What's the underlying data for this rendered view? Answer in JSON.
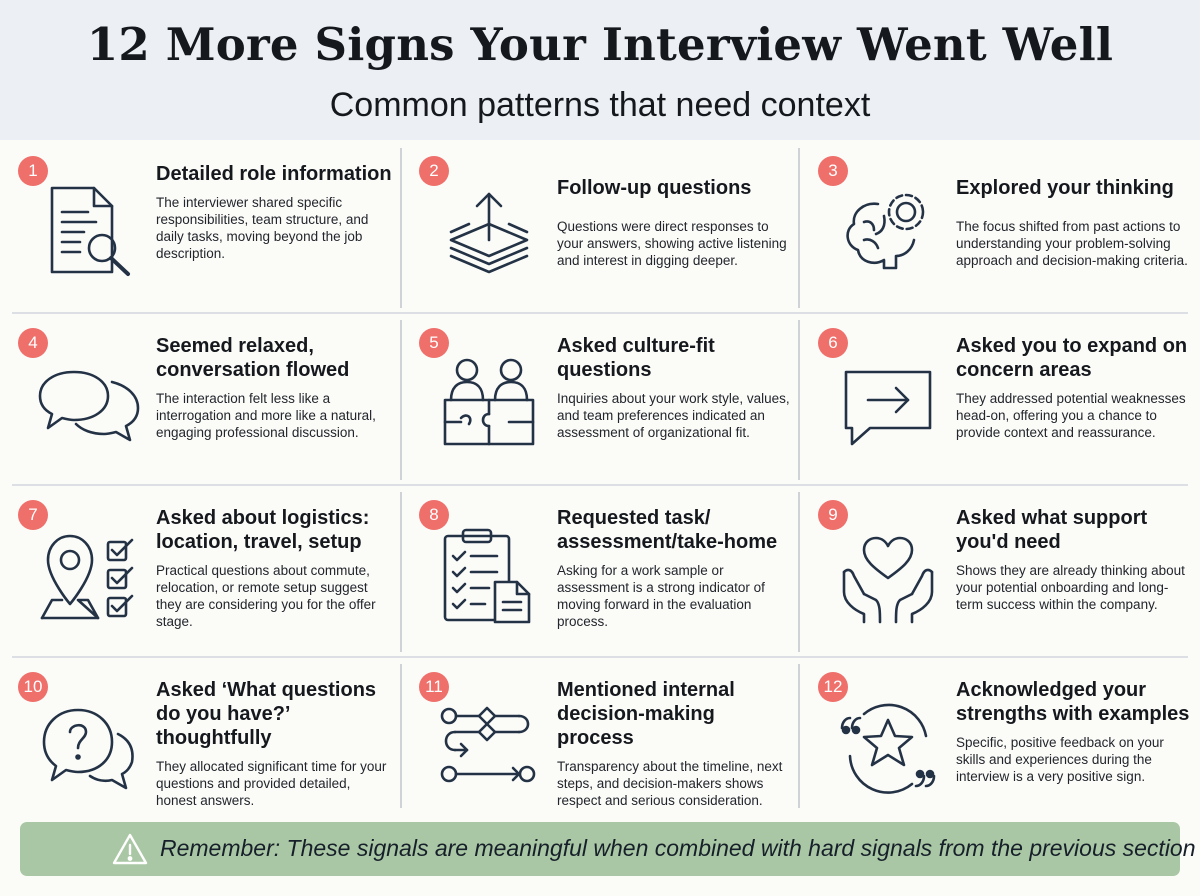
{
  "header": {
    "title": "12 More Signs Your Interview Went Well",
    "subtitle": "Common patterns that need context"
  },
  "cards": [
    {
      "number": "1",
      "icon": "document-search-icon",
      "title": "Detailed role information",
      "description": "The interviewer shared specific responsibilities, team structure, and daily tasks, moving beyond the job description."
    },
    {
      "number": "2",
      "icon": "layers-arrow-icon",
      "title": "Follow-up questions",
      "description": "Questions were direct responses to your answers, showing active listening and interest in digging deeper."
    },
    {
      "number": "3",
      "icon": "brain-gear-icon",
      "title": "Explored your thinking",
      "description": "The focus shifted from past actions to understanding your problem-solving approach and decision-making criteria."
    },
    {
      "number": "4",
      "icon": "chat-bubbles-icon",
      "title": "Seemed relaxed, conversation flowed",
      "description": "The interaction felt less like a interrogation and more like a natural, engaging professional discussion."
    },
    {
      "number": "5",
      "icon": "people-puzzle-icon",
      "title": "Asked culture-fit questions",
      "description": "Inquiries about your work style, values, and team preferences indicated an assessment of organizational fit."
    },
    {
      "number": "6",
      "icon": "speech-arrow-icon",
      "title": "Asked you to expand on concern areas",
      "description": "They addressed potential weaknesses head-on, offering you a chance to provide context and reassurance."
    },
    {
      "number": "7",
      "icon": "location-checklist-icon",
      "title": "Asked about logistics: location, travel, setup",
      "description": "Practical questions about commute, relocation, or remote setup suggest they are considering you for the offer stage."
    },
    {
      "number": "8",
      "icon": "clipboard-checklist-icon",
      "title": "Requested task/ assessment/take-home",
      "description": "Asking for a work sample or assessment is a strong indicator of moving forward in the evaluation process."
    },
    {
      "number": "9",
      "icon": "hands-heart-icon",
      "title": "Asked what support you'd need",
      "description": "Shows they are already thinking about your potential onboarding and long-term success within the company."
    },
    {
      "number": "10",
      "icon": "question-bubble-icon",
      "title": "Asked ‘What questions do you have?’ thoughtfully",
      "description": "They allocated significant time for your questions and provided detailed, honest answers."
    },
    {
      "number": "11",
      "icon": "process-flow-icon",
      "title": "Mentioned internal decision-making process",
      "description": "Transparency about the timeline, next steps, and decision-makers shows respect and serious consideration."
    },
    {
      "number": "12",
      "icon": "star-quote-icon",
      "title": "Acknowledged your strengths with examples",
      "description": "Specific, positive feedback on your skills and experiences during the interview is a very positive sign."
    }
  ],
  "banner": {
    "icon": "warning-icon",
    "text": "Remember: These signals are meaningful when combined with hard signals from the previous section"
  },
  "colors": {
    "badge": "#ef6f6a",
    "icon_stroke": "#243246",
    "banner": "#a9c7a4",
    "header_bg": "#eceff3"
  }
}
